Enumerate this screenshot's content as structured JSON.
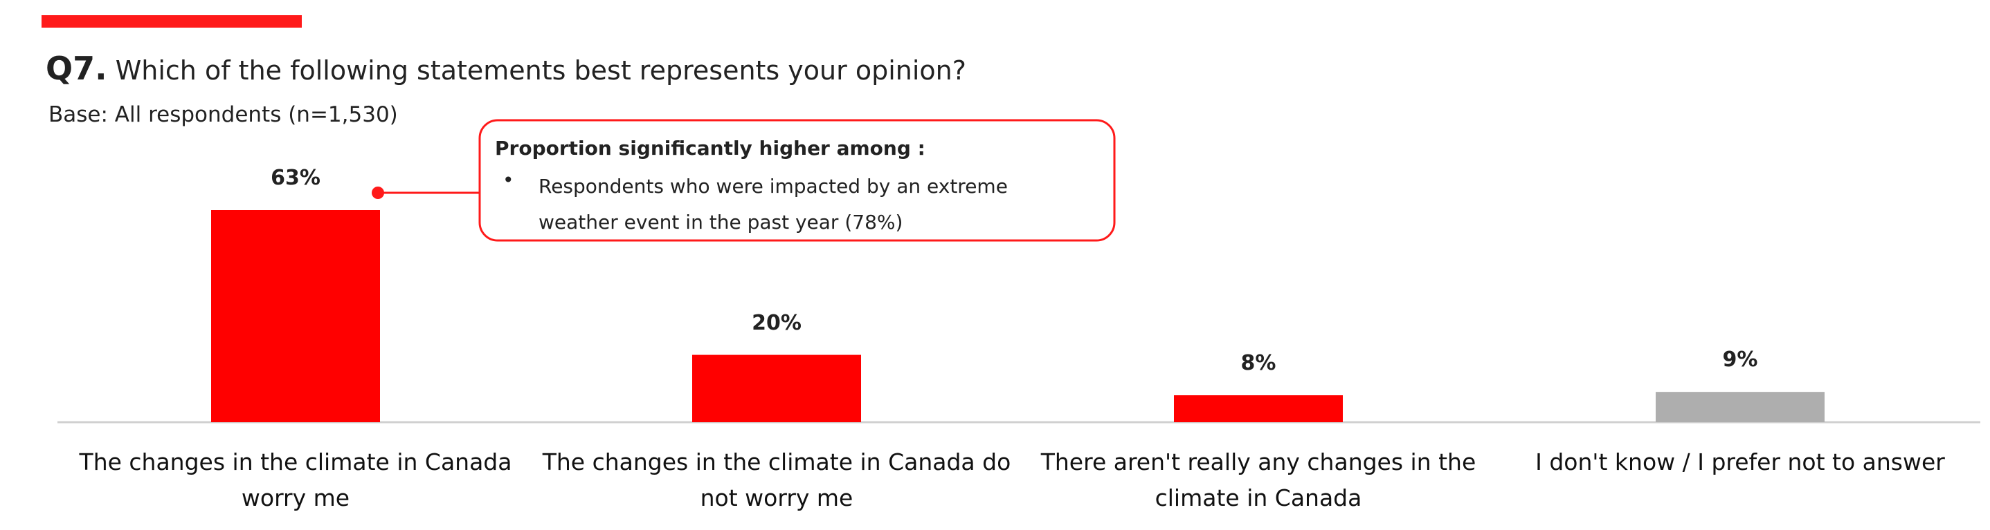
{
  "chart_data": {
    "type": "bar",
    "title_number": "Q7.",
    "title": "Which of the following statements best represents your opinion?",
    "subtitle": "Base: All respondents (n=1,530)",
    "categories": [
      "The changes in the climate in Canada worry me",
      "The changes in the climate in Canada do not worry me",
      "There aren't really any changes in the climate in Canada",
      "I don't know / I prefer not to answer"
    ],
    "values": [
      63,
      20,
      8,
      9
    ],
    "value_labels": [
      "63%",
      "20%",
      "8%",
      "9%"
    ],
    "colors": [
      "#ff0000",
      "#ff0000",
      "#ff0000",
      "#aeaeae"
    ],
    "annotation": {
      "heading": "Proportion significantly higher among :",
      "items": [
        "Respondents who were impacted by an extreme weather event in the past year (78%)"
      ]
    }
  }
}
